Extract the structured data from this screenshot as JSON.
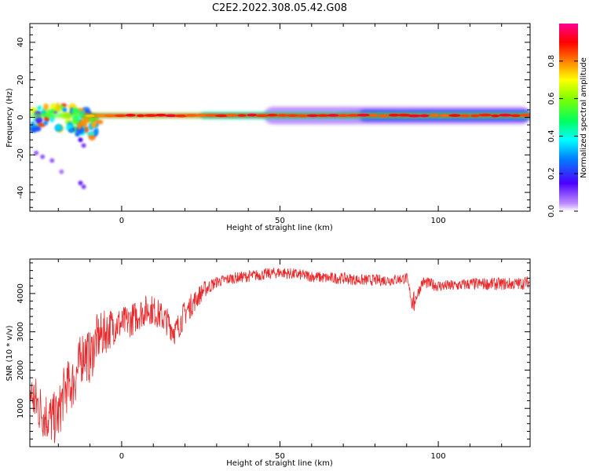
{
  "figure": {
    "title": "C2E2.2022.308.05.42.G08"
  },
  "chart_data": [
    {
      "type": "heatmap",
      "xlabel": "Height of straight line (km)",
      "ylabel": "Frequency (Hz)",
      "xlim": [
        -29,
        129
      ],
      "ylim": [
        -50,
        50
      ],
      "x_ticks": [
        "0",
        "50",
        "100"
      ],
      "y_ticks": [
        "40",
        "20",
        "0",
        "-20",
        "-40"
      ],
      "colorbar": {
        "label": "Normalized spectral amplitude",
        "range": [
          0,
          1
        ],
        "ticks": [
          "0.0",
          "0.2",
          "0.4",
          "0.6",
          "0.8"
        ],
        "colormap": "rainbow (purple-blue-cyan-green-yellow-red-magenta)"
      },
      "ridge": {
        "frequency_hz": 1,
        "x_start_km": -29,
        "x_end_km": 129,
        "description": "dominant narrow band near 0-2 Hz across all heights, broadening below ~-10 km"
      },
      "scattered_blobs": [
        {
          "x": -26,
          "y": 5,
          "amp": 0.4
        },
        {
          "x": -24,
          "y": -3,
          "amp": 0.3
        },
        {
          "x": -22,
          "y": 3,
          "amp": 0.5
        },
        {
          "x": -20,
          "y": -5,
          "amp": 0.35
        },
        {
          "x": -18,
          "y": 4,
          "amp": 0.3
        },
        {
          "x": -16,
          "y": -7,
          "amp": 0.3
        },
        {
          "x": -14,
          "y": -9,
          "amp": 0.25
        },
        {
          "x": -13,
          "y": -12,
          "amp": 0.15
        },
        {
          "x": -12,
          "y": -15,
          "amp": 0.1
        },
        {
          "x": -27,
          "y": -19,
          "amp": 0.08
        },
        {
          "x": -25,
          "y": -21,
          "amp": 0.08
        },
        {
          "x": -22,
          "y": -23,
          "amp": 0.08
        },
        {
          "x": -19,
          "y": -29,
          "amp": 0.06
        },
        {
          "x": -13,
          "y": -35,
          "amp": 0.12
        },
        {
          "x": -12,
          "y": -37,
          "amp": 0.1
        }
      ]
    },
    {
      "type": "line",
      "xlabel": "Height of straight line (km)",
      "ylabel": "SNR (10 * v/v)",
      "xlim": [
        -29,
        129
      ],
      "ylim": [
        0,
        4900
      ],
      "x_ticks": [
        "0",
        "50",
        "100"
      ],
      "y_ticks": [
        "1000",
        "2000",
        "3000",
        "4000"
      ],
      "color": "#e8282a",
      "series_summary": {
        "x": [
          -29,
          -25,
          -22,
          -20,
          -18,
          -15,
          -12,
          -10,
          -8,
          -5,
          -2,
          0,
          3,
          6,
          9,
          11,
          14,
          17,
          20,
          23,
          26,
          30,
          35,
          40,
          45,
          50,
          55,
          60,
          65,
          70,
          75,
          80,
          85,
          90,
          92,
          95,
          100,
          105,
          110,
          115,
          120,
          125,
          129
        ],
        "y": [
          1400,
          900,
          700,
          800,
          1500,
          1700,
          2500,
          2300,
          2800,
          3000,
          3200,
          3200,
          3300,
          3500,
          3600,
          3500,
          3300,
          3000,
          3500,
          3800,
          4100,
          4300,
          4400,
          4450,
          4500,
          4550,
          4500,
          4450,
          4400,
          4400,
          4350,
          4350,
          4350,
          4400,
          3700,
          4300,
          4200,
          4200,
          4250,
          4250,
          4250,
          4250,
          4300
        ]
      },
      "noise": {
        "amplitude_by_x": [
          [
            -29,
            700
          ],
          [
            -10,
            700
          ],
          [
            0,
            450
          ],
          [
            20,
            350
          ],
          [
            30,
            150
          ],
          [
            90,
            150
          ],
          [
            129,
            170
          ]
        ]
      }
    }
  ]
}
